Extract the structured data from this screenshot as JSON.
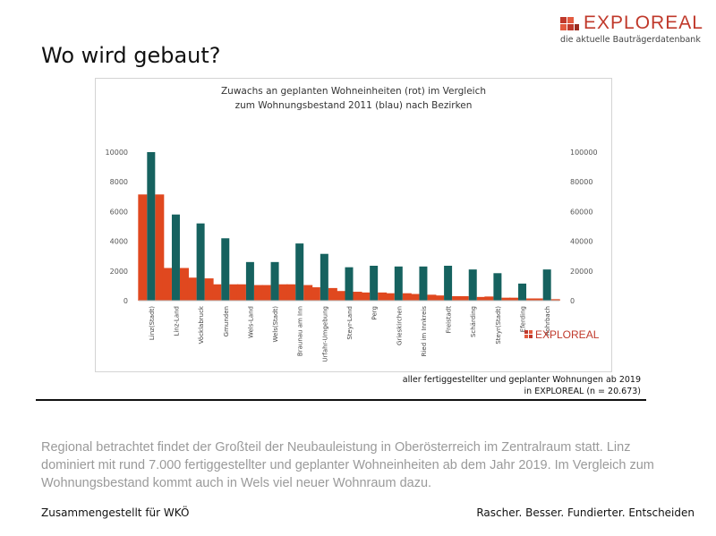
{
  "brand": {
    "name": "EXPLOREAL",
    "tagline": "die aktuelle Bauträgerdatenbank",
    "color": "#c0392b"
  },
  "page_title": "Wo wird gebaut?",
  "source_note": {
    "line1": "aller fertiggestellter und geplanter Wohnungen ab 2019",
    "line2": "in EXPLOREAL (n = 20.673)"
  },
  "body_text": "Regional betrachtet findet der Großteil der Neubauleistung in Oberösterreich im Zentralraum statt. Linz dominiert mit rund 7.000 fertiggestellter und geplanter Wohneinheiten ab dem Jahr 2019. Im Vergleich zum Wohnungsbestand kommt auch in Wels viel neuer Wohnraum dazu.",
  "footer": {
    "left": "Zusammengestellt für WKÖ",
    "right": "Rascher. Besser. Fundierter. Entscheiden"
  },
  "chart_watermark": "EXPLOREAL",
  "chart_data": {
    "type": "bar",
    "title_line1": "Zuwachs an geplanten Wohneinheiten (rot) im Vergleich",
    "title_line2": "zum Wohnungsbestand 2011 (blau) nach Bezirken",
    "categories": [
      "Linz(Stadt)",
      "Linz-Land",
      "Vöcklabruck",
      "Gmunden",
      "Wels-Land",
      "Wels(Stadt)",
      "Braunau am Inn",
      "Urfahr-Umgebung",
      "Steyr-Land",
      "Perg",
      "Grieskirchen",
      "Ried im Innkreis",
      "Freistadt",
      "Schärding",
      "Steyr(Stadt)",
      "Eferding",
      "Rohrbach"
    ],
    "series": [
      {
        "name": "Zuwachs an geplanten Wohneinheiten",
        "axis": "left",
        "color": "#e0481f",
        "values": [
          7150,
          2200,
          1550,
          1100,
          1100,
          1050,
          1100,
          900,
          650,
          550,
          500,
          450,
          350,
          300,
          280,
          200,
          150
        ],
        "values_alt": [
          7150,
          2200,
          1500,
          1100,
          1050,
          1100,
          1050,
          850,
          600,
          550,
          500,
          400,
          300,
          250,
          200,
          150,
          100
        ]
      },
      {
        "name": "Wohnungsbestand 2011",
        "axis": "right",
        "color": "#16625f",
        "values": [
          100000,
          58000,
          52000,
          42000,
          26000,
          26000,
          38500,
          31500,
          22500,
          23500,
          23000,
          23000,
          23500,
          21000,
          18500,
          11500,
          21000
        ]
      }
    ],
    "y_left": {
      "ylim": [
        0,
        10000
      ],
      "ticks": [
        "0",
        "2000",
        "4000",
        "6000",
        "8000",
        "10000"
      ]
    },
    "y_right": {
      "ylim": [
        0,
        100000
      ],
      "ticks": [
        "0",
        "20000",
        "40000",
        "60000",
        "80000",
        "100000"
      ]
    },
    "grid": false,
    "legend": "none"
  }
}
